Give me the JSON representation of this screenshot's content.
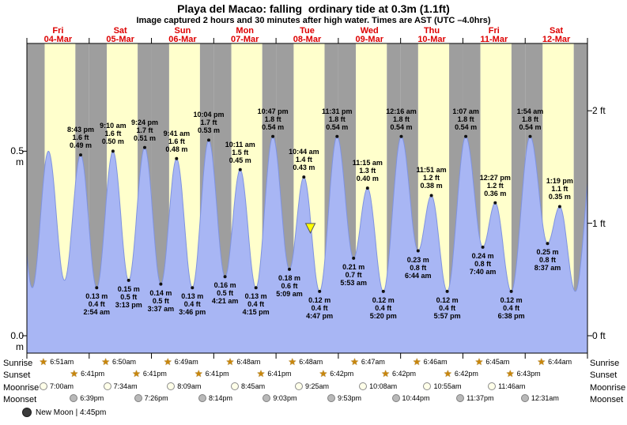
{
  "title": "Playa del Macao: falling  ordinary tide at 0.3m (1.1ft)",
  "subtitle": "Image captured 2 hours and 30 minutes after high water. Times are AST (UTC –4.0hrs)",
  "colors": {
    "day_band": "#ffffcc",
    "night_band": "#9e9e9e",
    "tide_fill": "#a8b6f4",
    "tide_stroke": "#7f93e0",
    "day_label": "#dd0000",
    "marker_fill": "#ffff00",
    "star": "#c8860b"
  },
  "y_axis": {
    "left": [
      {
        "label": "0.5 m",
        "value_m": 0.5
      },
      {
        "label": "0.0 m",
        "value_m": 0.0
      }
    ],
    "right": [
      {
        "label": "2 ft",
        "value_ft": 2
      },
      {
        "label": "1 ft",
        "value_ft": 1
      },
      {
        "label": "0 ft",
        "value_ft": 0
      }
    ]
  },
  "days": [
    {
      "name": "Fri",
      "date": "04-Mar"
    },
    {
      "name": "Sat",
      "date": "05-Mar"
    },
    {
      "name": "Sun",
      "date": "06-Mar"
    },
    {
      "name": "Mon",
      "date": "07-Mar"
    },
    {
      "name": "Tue",
      "date": "08-Mar"
    },
    {
      "name": "Wed",
      "date": "09-Mar"
    },
    {
      "name": "Thu",
      "date": "10-Mar"
    },
    {
      "name": "Fri",
      "date": "11-Mar"
    },
    {
      "name": "Sat",
      "date": "12-Mar"
    }
  ],
  "chart_data": {
    "type": "area",
    "title": "Playa del Macao tide heights, 04-Mar to 12-Mar",
    "x_range_days": 9,
    "ylim_m": [
      -0.05,
      0.62
    ],
    "y_ticks_left": [
      "0.5 m",
      "0.0 m"
    ],
    "y_ticks_right": [
      "2 ft",
      "1 ft",
      "0 ft"
    ],
    "extremes": [
      {
        "t": 0.8632,
        "day": 0,
        "kind": "high",
        "time": "8:43 pm",
        "height_m": 0.49,
        "height_ft": "1.6 ft"
      },
      {
        "t": 1.1208,
        "day": 1,
        "kind": "low",
        "time": "2:54 am",
        "height_m": 0.13,
        "height_ft": "0.4 ft"
      },
      {
        "t": 1.3819,
        "day": 1,
        "kind": "high",
        "time": "9:10 am",
        "height_m": 0.5,
        "height_ft": "1.6 ft"
      },
      {
        "t": 1.634,
        "day": 1,
        "kind": "low",
        "time": "3:13 pm",
        "height_m": 0.15,
        "height_ft": "0.5 ft"
      },
      {
        "t": 1.8917,
        "day": 1,
        "kind": "high",
        "time": "9:24 pm",
        "height_m": 0.51,
        "height_ft": "1.7 ft"
      },
      {
        "t": 2.1507,
        "day": 2,
        "kind": "low",
        "time": "3:37 am",
        "height_m": 0.14,
        "height_ft": "0.5 ft"
      },
      {
        "t": 2.4035,
        "day": 2,
        "kind": "high",
        "time": "9:41 am",
        "height_m": 0.48,
        "height_ft": "1.6 ft"
      },
      {
        "t": 2.6569,
        "day": 2,
        "kind": "low",
        "time": "3:46 pm",
        "height_m": 0.13,
        "height_ft": "0.4 ft"
      },
      {
        "t": 2.9194,
        "day": 2,
        "kind": "high",
        "time": "10:04 pm",
        "height_m": 0.53,
        "height_ft": "1.7 ft"
      },
      {
        "t": 3.1813,
        "day": 3,
        "kind": "low",
        "time": "4:21 am",
        "height_m": 0.16,
        "height_ft": "0.5 ft"
      },
      {
        "t": 3.4243,
        "day": 3,
        "kind": "high",
        "time": "10:11 am",
        "height_m": 0.45,
        "height_ft": "1.5 ft"
      },
      {
        "t": 3.6771,
        "day": 3,
        "kind": "low",
        "time": "4:15 pm",
        "height_m": 0.13,
        "height_ft": "0.4 ft"
      },
      {
        "t": 3.9493,
        "day": 3,
        "kind": "high",
        "time": "10:47 pm",
        "height_m": 0.54,
        "height_ft": "1.8 ft"
      },
      {
        "t": 4.2146,
        "day": 4,
        "kind": "low",
        "time": "5:09 am",
        "height_m": 0.18,
        "height_ft": "0.6 ft"
      },
      {
        "t": 4.4472,
        "day": 4,
        "kind": "high",
        "time": "10:44 am",
        "height_m": 0.43,
        "height_ft": "1.4 ft"
      },
      {
        "t": 4.6993,
        "day": 4,
        "kind": "low",
        "time": "4:47 pm",
        "height_m": 0.12,
        "height_ft": "0.4 ft"
      },
      {
        "t": 4.9799,
        "day": 4,
        "kind": "high",
        "time": "11:31 pm",
        "height_m": 0.54,
        "height_ft": "1.8 ft"
      },
      {
        "t": 5.2451,
        "day": 5,
        "kind": "low",
        "time": "5:53 am",
        "height_m": 0.21,
        "height_ft": "0.7 ft"
      },
      {
        "t": 5.4688,
        "day": 5,
        "kind": "high",
        "time": "11:15 am",
        "height_m": 0.4,
        "height_ft": "1.3 ft"
      },
      {
        "t": 5.7222,
        "day": 5,
        "kind": "low",
        "time": "5:20 pm",
        "height_m": 0.12,
        "height_ft": "0.4 ft"
      },
      {
        "t": 6.0111,
        "day": 6,
        "kind": "high",
        "time": "12:16 am",
        "height_m": 0.54,
        "height_ft": "1.8 ft"
      },
      {
        "t": 6.2806,
        "day": 6,
        "kind": "low",
        "time": "6:44 am",
        "height_m": 0.23,
        "height_ft": "0.8 ft"
      },
      {
        "t": 6.4938,
        "day": 6,
        "kind": "high",
        "time": "11:51 am",
        "height_m": 0.38,
        "height_ft": "1.2 ft"
      },
      {
        "t": 6.7479,
        "day": 6,
        "kind": "low",
        "time": "5:57 pm",
        "height_m": 0.12,
        "height_ft": "0.4 ft"
      },
      {
        "t": 7.0465,
        "day": 7,
        "kind": "high",
        "time": "1:07 am",
        "height_m": 0.54,
        "height_ft": "1.8 ft"
      },
      {
        "t": 7.3194,
        "day": 7,
        "kind": "low",
        "time": "7:40 am",
        "height_m": 0.24,
        "height_ft": "0.8 ft"
      },
      {
        "t": 7.5188,
        "day": 7,
        "kind": "high",
        "time": "12:27 pm",
        "height_m": 0.36,
        "height_ft": "1.2 ft"
      },
      {
        "t": 7.7764,
        "day": 7,
        "kind": "low",
        "time": "6:38 pm",
        "height_m": 0.12,
        "height_ft": "0.4 ft"
      },
      {
        "t": 8.0792,
        "day": 8,
        "kind": "high",
        "time": "1:54 am",
        "height_m": 0.54,
        "height_ft": "1.8 ft"
      },
      {
        "t": 8.359,
        "day": 8,
        "kind": "low",
        "time": "8:37 am",
        "height_m": 0.25,
        "height_ft": "0.8 ft"
      },
      {
        "t": 8.5549,
        "day": 8,
        "kind": "high",
        "time": "1:19 pm",
        "height_m": 0.35,
        "height_ft": "1.1 ft"
      }
    ],
    "unlabeled_curve_anchors": [
      {
        "t": -0.1715,
        "height_m": 0.49
      },
      {
        "t": 0.0861,
        "height_m": 0.13
      },
      {
        "t": 0.3458,
        "height_m": 0.5
      },
      {
        "t": 0.6035,
        "height_m": 0.15
      },
      {
        "t": 8.8049,
        "height_m": 0.12
      },
      {
        "t": 9.1146,
        "height_m": 0.54
      }
    ],
    "current_marker": {
      "t": 4.5514,
      "height_m": 0.3
    }
  },
  "astro": {
    "rows": [
      {
        "key": "sunrise",
        "label": "Sunrise",
        "icon": "star",
        "entries": [
          {
            "day": 0,
            "time": "6:51am"
          },
          {
            "day": 1,
            "time": "6:50am"
          },
          {
            "day": 2,
            "time": "6:49am"
          },
          {
            "day": 3,
            "time": "6:48am"
          },
          {
            "day": 4,
            "time": "6:48am"
          },
          {
            "day": 5,
            "time": "6:47am"
          },
          {
            "day": 6,
            "time": "6:46am"
          },
          {
            "day": 7,
            "time": "6:45am"
          },
          {
            "day": 8,
            "time": "6:44am"
          }
        ]
      },
      {
        "key": "sunset",
        "label": "Sunset",
        "icon": "star",
        "entries": [
          {
            "day": 0,
            "time": "6:41pm"
          },
          {
            "day": 1,
            "time": "6:41pm"
          },
          {
            "day": 2,
            "time": "6:41pm"
          },
          {
            "day": 3,
            "time": "6:41pm"
          },
          {
            "day": 4,
            "time": "6:42pm"
          },
          {
            "day": 5,
            "time": "6:42pm"
          },
          {
            "day": 6,
            "time": "6:42pm"
          },
          {
            "day": 7,
            "time": "6:43pm"
          }
        ]
      },
      {
        "key": "moonrise",
        "label": "Moonrise",
        "icon": "moon-open",
        "entries": [
          {
            "day": 0,
            "time": "7:00am"
          },
          {
            "day": 1,
            "time": "7:34am"
          },
          {
            "day": 2,
            "time": "8:09am"
          },
          {
            "day": 3,
            "time": "8:45am"
          },
          {
            "day": 4,
            "time": "9:25am"
          },
          {
            "day": 5,
            "time": "10:08am"
          },
          {
            "day": 6,
            "time": "10:55am"
          },
          {
            "day": 7,
            "time": "11:46am"
          }
        ]
      },
      {
        "key": "moonset",
        "label": "Moonset",
        "icon": "moon-filled",
        "entries": [
          {
            "day": 0,
            "time": "6:39pm"
          },
          {
            "day": 1,
            "time": "7:26pm"
          },
          {
            "day": 2,
            "time": "8:14pm"
          },
          {
            "day": 3,
            "time": "9:03pm"
          },
          {
            "day": 4,
            "time": "9:53pm"
          },
          {
            "day": 5,
            "time": "10:44pm"
          },
          {
            "day": 6,
            "time": "11:37pm"
          },
          {
            "day": 8,
            "time": "12:31am"
          }
        ]
      }
    ],
    "moon_phase": {
      "label": "New Moon | 4:45pm"
    }
  }
}
